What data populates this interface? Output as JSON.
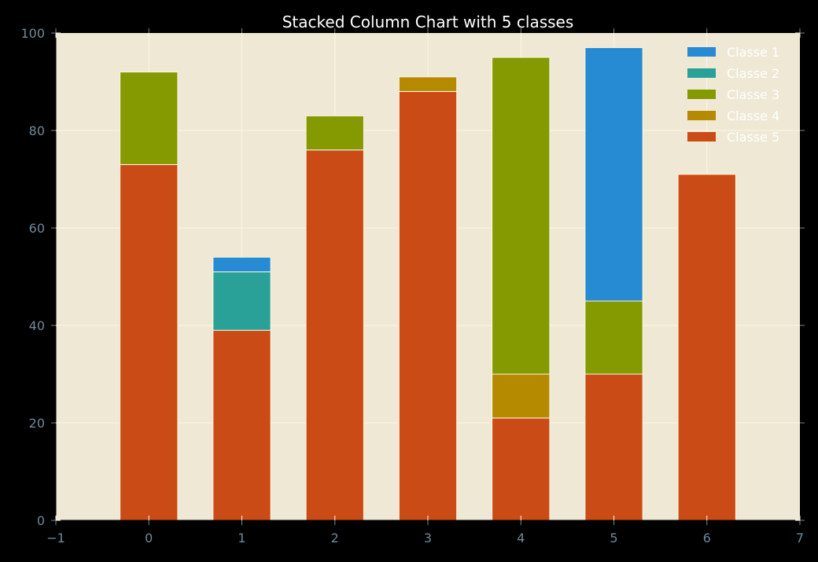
{
  "chart_data": {
    "type": "bar",
    "stacked": true,
    "title": "Stacked Column Chart with 5 classes",
    "xlabel": "",
    "ylabel": "",
    "x": [
      0,
      1,
      2,
      3,
      4,
      5,
      6
    ],
    "xlim": [
      -1,
      7
    ],
    "ylim": [
      0,
      100
    ],
    "xticks": [
      "−1",
      "0",
      "1",
      "2",
      "3",
      "4",
      "5",
      "6",
      "7"
    ],
    "xtick_values": [
      -1,
      0,
      1,
      2,
      3,
      4,
      5,
      6,
      7
    ],
    "yticks": [
      "0",
      "20",
      "40",
      "60",
      "80",
      "100"
    ],
    "ytick_values": [
      0,
      20,
      40,
      60,
      80,
      100
    ],
    "grid": true,
    "legend_position": "top-right",
    "stack_order": [
      "Classe 5",
      "Classe 4",
      "Classe 3",
      "Classe 2",
      "Classe 1"
    ],
    "series": [
      {
        "name": "Classe 1",
        "color": "#268bd2",
        "values": [
          0,
          3,
          0,
          0,
          0,
          52,
          0
        ]
      },
      {
        "name": "Classe 2",
        "color": "#2aa198",
        "values": [
          0,
          12,
          0,
          0,
          0,
          0,
          0
        ]
      },
      {
        "name": "Classe 3",
        "color": "#859900",
        "values": [
          19,
          0,
          7,
          0,
          65,
          15,
          0
        ]
      },
      {
        "name": "Classe 4",
        "color": "#b58900",
        "values": [
          0,
          0,
          0,
          3,
          9,
          0,
          0
        ]
      },
      {
        "name": "Classe 5",
        "color": "#cb4b16",
        "values": [
          73,
          39,
          76,
          88,
          21,
          30,
          71
        ]
      }
    ]
  },
  "colors": {
    "figure_background": "#000000",
    "axes_background": "#eee8d5",
    "grid": "#fdf6e3",
    "tick_label": "#6f8a99",
    "title": "#ffffff"
  }
}
